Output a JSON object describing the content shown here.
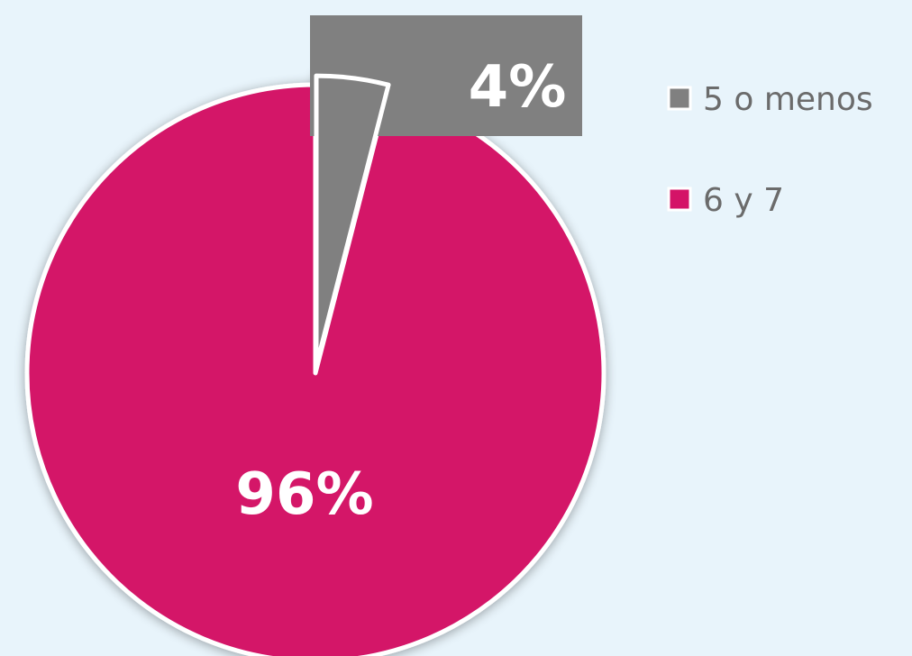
{
  "chart_data": {
    "type": "pie",
    "slices": [
      {
        "label": "5 o menos",
        "value": 4,
        "display": "4%",
        "color": "#808080"
      },
      {
        "label": "6 y 7",
        "value": 96,
        "display": "96%",
        "color": "#d41367"
      }
    ],
    "legend_position": "right",
    "slice_border_color": "#ffffff",
    "label_box_color": "#808080"
  }
}
